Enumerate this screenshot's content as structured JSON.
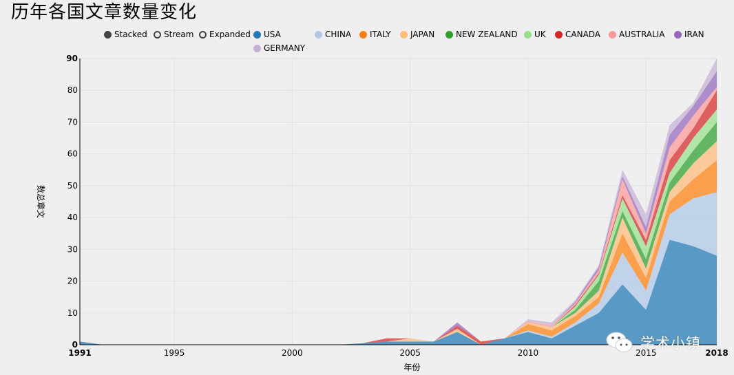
{
  "title": "历年各国文章数量变化",
  "controls": [
    {
      "label": "Stacked",
      "selected": true
    },
    {
      "label": "Stream",
      "selected": false
    },
    {
      "label": "Expanded",
      "selected": false
    }
  ],
  "watermark": "学术小镇",
  "chart_data": {
    "type": "area",
    "stacked": true,
    "xlabel": "年份",
    "ylabel": "数总章文",
    "xlim": [
      1991,
      2018
    ],
    "ylim": [
      0,
      90
    ],
    "x_ticks": [
      1991,
      1995,
      2000,
      2005,
      2010,
      2015,
      2018
    ],
    "y_ticks": [
      0,
      10,
      20,
      30,
      40,
      50,
      60,
      70,
      80,
      90
    ],
    "grid": true,
    "legend_position": "top",
    "x": [
      1991,
      1992,
      1993,
      1994,
      1995,
      1996,
      1997,
      1998,
      1999,
      2000,
      2001,
      2002,
      2003,
      2004,
      2005,
      2006,
      2007,
      2008,
      2009,
      2010,
      2011,
      2012,
      2013,
      2014,
      2015,
      2016,
      2017,
      2018
    ],
    "series": [
      {
        "name": "USA",
        "color": "#1f77b4",
        "values": [
          1,
          0,
          0,
          0,
          0,
          0,
          0,
          0,
          0,
          0,
          0,
          0,
          0.5,
          1,
          1,
          1,
          4,
          0,
          2,
          4,
          2,
          6,
          10,
          19,
          11,
          33,
          31,
          28
        ]
      },
      {
        "name": "CHINA",
        "color": "#aec7e8",
        "values": [
          0,
          0,
          0,
          0,
          0,
          0,
          0,
          0,
          0,
          0,
          0,
          0,
          0,
          0,
          0,
          0,
          0,
          0,
          0,
          0.5,
          0.5,
          1,
          3,
          10,
          6,
          8,
          15,
          20
        ]
      },
      {
        "name": "ITALY",
        "color": "#ff7f0e",
        "values": [
          0,
          0,
          0,
          0,
          0,
          0,
          0,
          0,
          0,
          0,
          0,
          0,
          0,
          0,
          0,
          0,
          0,
          0,
          0,
          2,
          2,
          2,
          2,
          6,
          4,
          4,
          6,
          10
        ]
      },
      {
        "name": "JAPAN",
        "color": "#ffbb78",
        "values": [
          0,
          0,
          0,
          0,
          0,
          0,
          0,
          0,
          0,
          0,
          0,
          0,
          0,
          0,
          1,
          0,
          1,
          0,
          0,
          0.5,
          1,
          1,
          2,
          5,
          3,
          3,
          5,
          6
        ]
      },
      {
        "name": "NEW ZEALAND",
        "color": "#2ca02c",
        "values": [
          0,
          0,
          0,
          0,
          0,
          0,
          0,
          0,
          0,
          0,
          0,
          0,
          0,
          0,
          0,
          0,
          0,
          0,
          0,
          0,
          0,
          1,
          3,
          2,
          3,
          3,
          4,
          6
        ]
      },
      {
        "name": "UK",
        "color": "#98df8a",
        "values": [
          0,
          0,
          0,
          0,
          0,
          0,
          0,
          0,
          0,
          0,
          0,
          0,
          0,
          0,
          0,
          0,
          0,
          0,
          0,
          0,
          0,
          1,
          2,
          4,
          4,
          3,
          4,
          4
        ]
      },
      {
        "name": "CANADA",
        "color": "#d62728",
        "values": [
          0,
          0,
          0,
          0,
          0,
          0,
          0,
          0,
          0,
          0,
          0,
          0,
          0,
          1,
          0,
          0,
          1,
          1,
          0,
          0,
          0,
          0.5,
          0.5,
          1,
          2,
          4,
          3,
          6
        ]
      },
      {
        "name": "AUSTRALIA",
        "color": "#ff9896",
        "values": [
          0,
          0,
          0,
          0,
          0,
          0,
          0,
          0,
          0,
          0,
          0,
          0,
          0,
          0,
          0,
          0,
          0,
          0,
          0,
          0.5,
          0.5,
          0.5,
          1,
          5,
          2,
          4,
          4,
          1
        ]
      },
      {
        "name": "IRAN",
        "color": "#9467bd",
        "values": [
          0,
          0,
          0,
          0,
          0,
          0,
          0,
          0,
          0,
          0,
          0,
          0,
          0,
          0,
          0,
          0,
          1,
          0,
          0,
          0,
          0,
          0.5,
          1,
          1,
          2,
          4,
          3,
          5
        ]
      },
      {
        "name": "GERMANY",
        "color": "#c5b0d5",
        "values": [
          0,
          0,
          0,
          0,
          0,
          0,
          0,
          0,
          0,
          0,
          0,
          0,
          0,
          0,
          0,
          0,
          0,
          0,
          0,
          0.5,
          1,
          0.5,
          0.5,
          2,
          4,
          3,
          1,
          4
        ]
      }
    ]
  }
}
